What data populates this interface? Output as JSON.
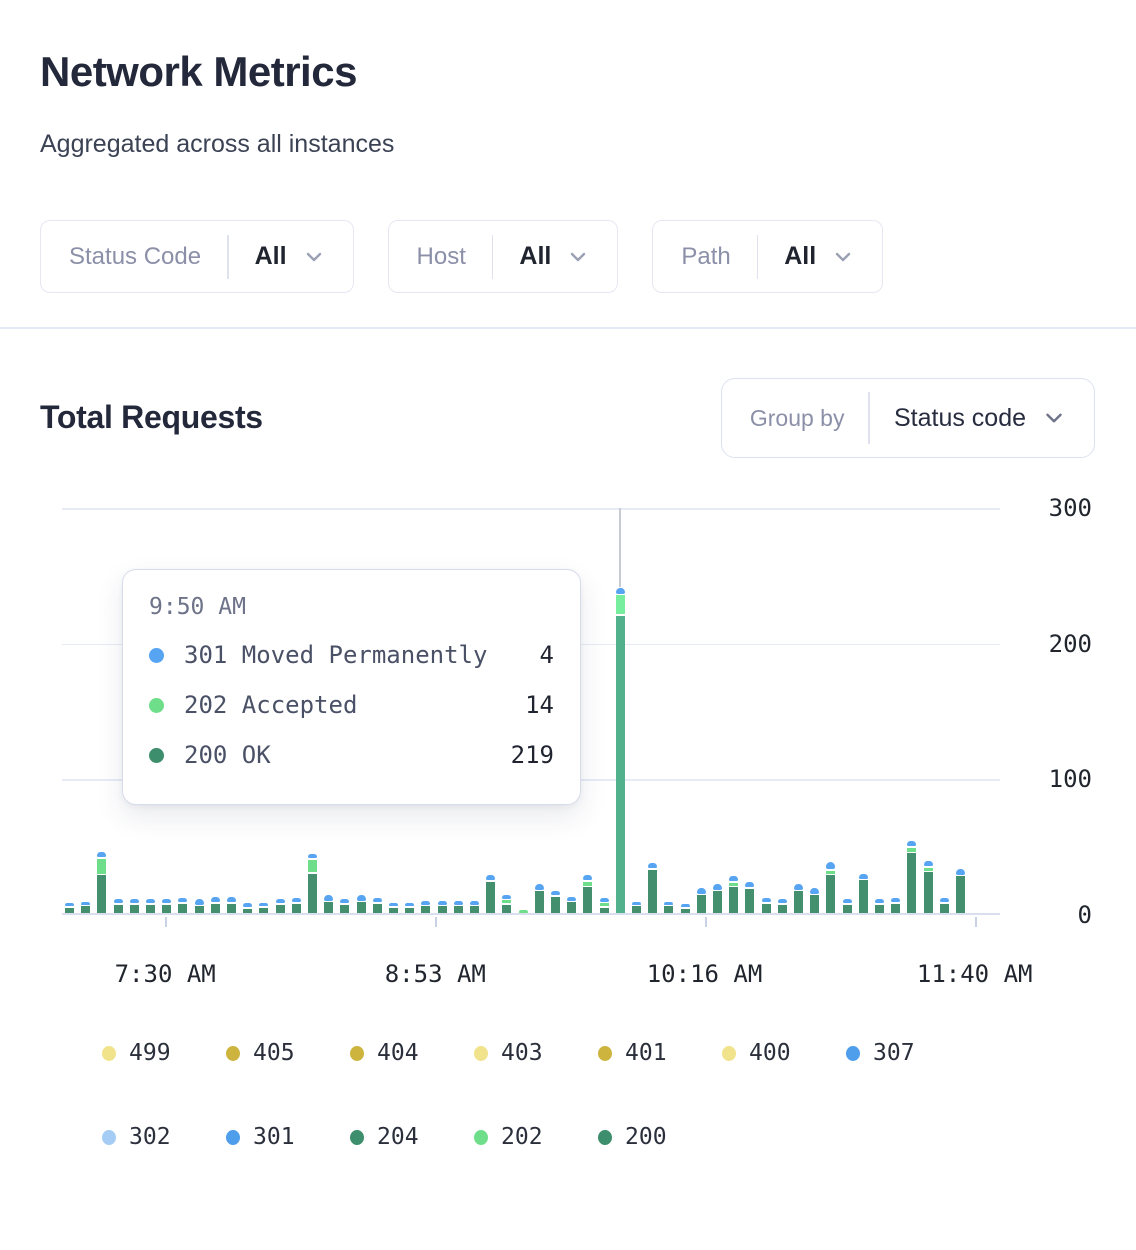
{
  "header": {
    "title": "Network Metrics",
    "subtitle": "Aggregated across all instances"
  },
  "filters": [
    {
      "label": "Status Code",
      "value": "All"
    },
    {
      "label": "Host",
      "value": "All"
    },
    {
      "label": "Path",
      "value": "All"
    }
  ],
  "section": {
    "title": "Total Requests",
    "group_by_label": "Group by",
    "group_by_value": "Status code"
  },
  "chart_data": {
    "type": "bar",
    "stacked": true,
    "grid": true,
    "ylim": [
      0,
      300
    ],
    "y_ticks": [
      "300",
      "200",
      "100",
      "0"
    ],
    "x_ticks": [
      {
        "label": "7:30 AM",
        "pos": 0.11
      },
      {
        "label": "8:53 AM",
        "pos": 0.398
      },
      {
        "label": "10:16 AM",
        "pos": 0.685
      },
      {
        "label": "11:40 AM",
        "pos": 0.973
      }
    ],
    "series": [
      {
        "code": "200",
        "color": "#44906E",
        "hover_color": "#50B18C"
      },
      {
        "code": "202",
        "color": "#6FDE8B",
        "hover_color": "#77EE9D"
      },
      {
        "code": "301",
        "color": "#57A5F2",
        "hover_color": "#57A5F2"
      }
    ],
    "bars": [
      [
        4,
        0,
        2
      ],
      [
        5,
        0,
        2
      ],
      [
        28,
        11,
        4
      ],
      [
        6,
        0,
        3
      ],
      [
        6,
        0,
        3
      ],
      [
        6,
        0,
        3
      ],
      [
        6,
        0,
        3
      ],
      [
        7,
        0,
        3
      ],
      [
        5,
        0,
        4
      ],
      [
        7,
        0,
        4
      ],
      [
        7,
        0,
        4
      ],
      [
        3,
        0,
        3
      ],
      [
        4,
        0,
        1
      ],
      [
        6,
        0,
        3
      ],
      [
        7,
        0,
        3
      ],
      [
        29,
        9,
        3
      ],
      [
        8,
        0,
        4
      ],
      [
        6,
        0,
        3
      ],
      [
        8,
        0,
        4
      ],
      [
        7,
        0,
        3
      ],
      [
        4,
        0,
        2
      ],
      [
        4,
        0,
        2
      ],
      [
        5,
        0,
        3
      ],
      [
        5,
        0,
        3
      ],
      [
        5,
        0,
        3
      ],
      [
        5,
        0,
        3
      ],
      [
        23,
        0,
        4
      ],
      [
        6,
        2,
        3
      ],
      [
        0,
        2,
        0
      ],
      [
        16,
        0,
        4
      ],
      [
        12,
        0,
        3
      ],
      [
        8,
        0,
        3
      ],
      [
        19,
        3,
        4
      ],
      [
        4,
        2,
        3
      ],
      [
        219,
        14,
        4
      ],
      [
        5,
        0,
        2
      ],
      [
        32,
        0,
        4
      ],
      [
        5,
        0,
        2
      ],
      [
        3,
        0,
        2
      ],
      [
        13,
        0,
        4
      ],
      [
        16,
        0,
        4
      ],
      [
        19,
        2,
        4
      ],
      [
        18,
        0,
        4
      ],
      [
        7,
        0,
        3
      ],
      [
        6,
        0,
        3
      ],
      [
        16,
        0,
        4
      ],
      [
        13,
        0,
        4
      ],
      [
        28,
        2,
        5
      ],
      [
        6,
        0,
        3
      ],
      [
        24,
        0,
        4
      ],
      [
        6,
        0,
        3
      ],
      [
        7,
        0,
        3
      ],
      [
        44,
        3,
        4
      ],
      [
        30,
        2,
        4
      ],
      [
        7,
        0,
        3
      ],
      [
        27,
        0,
        4
      ]
    ],
    "hover_index": 34,
    "tooltip": {
      "time": "9:50 AM",
      "rows": [
        {
          "label": "301 Moved Permanently",
          "value": "4",
          "color": "#57A5F2"
        },
        {
          "label": "202 Accepted",
          "value": "14",
          "color": "#6FDE8B"
        },
        {
          "label": "200 OK",
          "value": "219",
          "color": "#3D8E6C"
        }
      ]
    }
  },
  "legend": {
    "rows": [
      [
        {
          "label": "499",
          "color": "#F1E38B"
        },
        {
          "label": "405",
          "color": "#CCB43E"
        },
        {
          "label": "404",
          "color": "#CCB43E"
        },
        {
          "label": "403",
          "color": "#F1E38B"
        },
        {
          "label": "401",
          "color": "#CCB43E"
        },
        {
          "label": "400",
          "color": "#F1E38B"
        },
        {
          "label": "307",
          "color": "#4E9EEC"
        }
      ],
      [
        {
          "label": "302",
          "color": "#A5CCF4"
        },
        {
          "label": "301",
          "color": "#4E9EEC"
        },
        {
          "label": "204",
          "color": "#3D8E6C"
        },
        {
          "label": "202",
          "color": "#6FDE8B"
        },
        {
          "label": "200",
          "color": "#3D8E6C"
        }
      ]
    ]
  }
}
